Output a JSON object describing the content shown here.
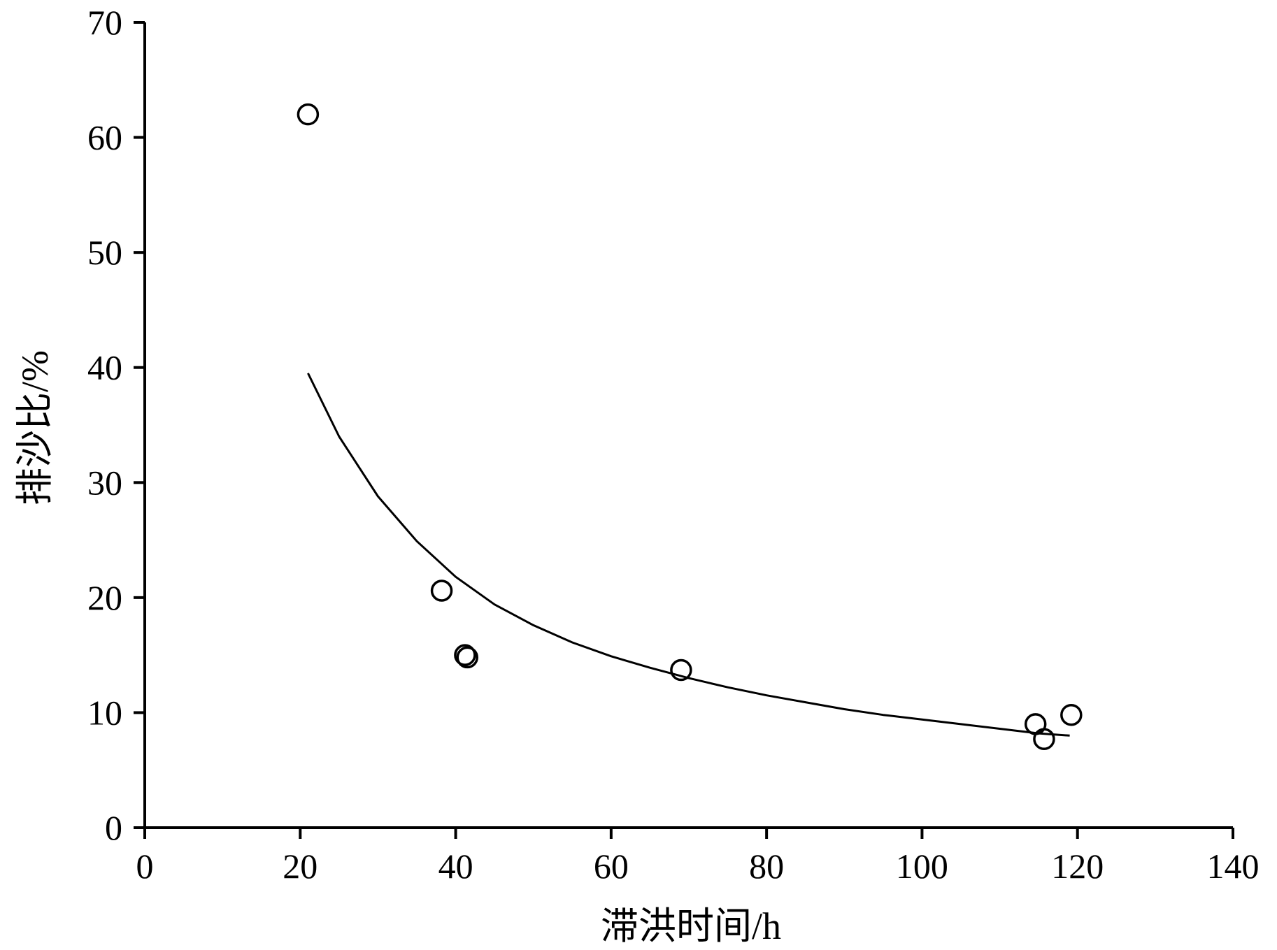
{
  "chart_data": {
    "type": "scatter",
    "title": "",
    "xlabel": "滞洪时间/h",
    "ylabel": "排沙比/%",
    "xlim": [
      0,
      140
    ],
    "ylim": [
      0,
      70
    ],
    "xticks": [
      0,
      20,
      40,
      60,
      80,
      100,
      120,
      140
    ],
    "yticks": [
      0,
      10,
      20,
      30,
      40,
      50,
      60,
      70
    ],
    "x_tick_labels": [
      "0",
      "20",
      "40",
      "60",
      "80",
      "100",
      "120",
      "140"
    ],
    "y_tick_labels": [
      "0",
      "10",
      "20",
      "30",
      "40",
      "50",
      "60",
      "70"
    ],
    "grid": false,
    "legend": "none",
    "series": [
      {
        "type": "scatter",
        "marker": "open-circle",
        "points": [
          {
            "x": 21.0,
            "y": 62.0
          },
          {
            "x": 38.2,
            "y": 20.6
          },
          {
            "x": 41.2,
            "y": 15.0
          },
          {
            "x": 41.5,
            "y": 14.8
          },
          {
            "x": 69.0,
            "y": 13.7
          },
          {
            "x": 114.6,
            "y": 9.0
          },
          {
            "x": 115.7,
            "y": 7.7
          },
          {
            "x": 119.2,
            "y": 9.8
          }
        ]
      },
      {
        "type": "line",
        "curve": "fitted",
        "points": [
          {
            "x": 21,
            "y": 39.5
          },
          {
            "x": 25,
            "y": 34.0
          },
          {
            "x": 30,
            "y": 28.8
          },
          {
            "x": 35,
            "y": 24.9
          },
          {
            "x": 40,
            "y": 21.8
          },
          {
            "x": 45,
            "y": 19.4
          },
          {
            "x": 50,
            "y": 17.6
          },
          {
            "x": 55,
            "y": 16.1
          },
          {
            "x": 60,
            "y": 14.9
          },
          {
            "x": 65,
            "y": 13.9
          },
          {
            "x": 70,
            "y": 13.0
          },
          {
            "x": 75,
            "y": 12.2
          },
          {
            "x": 80,
            "y": 11.5
          },
          {
            "x": 85,
            "y": 10.9
          },
          {
            "x": 90,
            "y": 10.3
          },
          {
            "x": 95,
            "y": 9.8
          },
          {
            "x": 100,
            "y": 9.4
          },
          {
            "x": 105,
            "y": 9.0
          },
          {
            "x": 110,
            "y": 8.6
          },
          {
            "x": 115,
            "y": 8.2
          },
          {
            "x": 119,
            "y": 8.0
          }
        ]
      }
    ],
    "colors": {
      "axis": "#000000",
      "marker": "#000000",
      "line": "#000000"
    }
  }
}
